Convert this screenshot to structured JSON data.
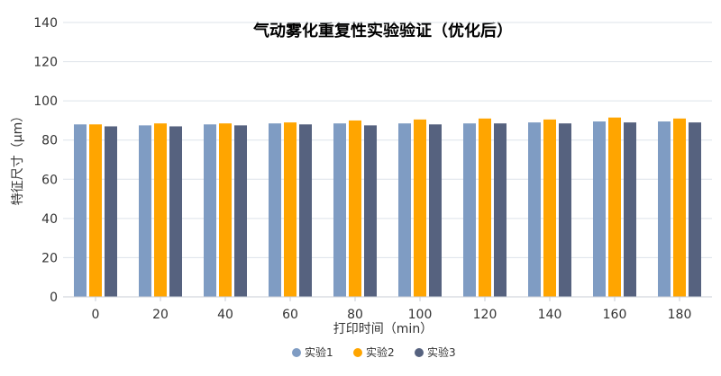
{
  "chart_data": {
    "type": "bar",
    "title": "气动雾化重复性实验验证（优化后）",
    "xlabel": "打印时间（min）",
    "ylabel": "特征尺寸（μm）",
    "categories": [
      "0",
      "20",
      "40",
      "60",
      "80",
      "100",
      "120",
      "140",
      "160",
      "180"
    ],
    "ylim": [
      0,
      140
    ],
    "yticks": [
      "0",
      "20",
      "40",
      "60",
      "80",
      "100",
      "120",
      "140"
    ],
    "grid": true,
    "legend_position": "bottom",
    "series": [
      {
        "name": "实验1",
        "color": "#7f9cc3",
        "values": [
          88,
          87.5,
          88,
          88.5,
          88.5,
          88.5,
          88.5,
          89,
          89.5,
          89.5
        ]
      },
      {
        "name": "实验2",
        "color": "#ffa500",
        "values": [
          88,
          88.5,
          88.5,
          89,
          90,
          90.5,
          91,
          90.5,
          91.5,
          91
        ]
      },
      {
        "name": "实验3",
        "color": "#56627f",
        "values": [
          87,
          87,
          87.5,
          88,
          87.5,
          88,
          88.5,
          88.5,
          89,
          89
        ]
      }
    ]
  }
}
